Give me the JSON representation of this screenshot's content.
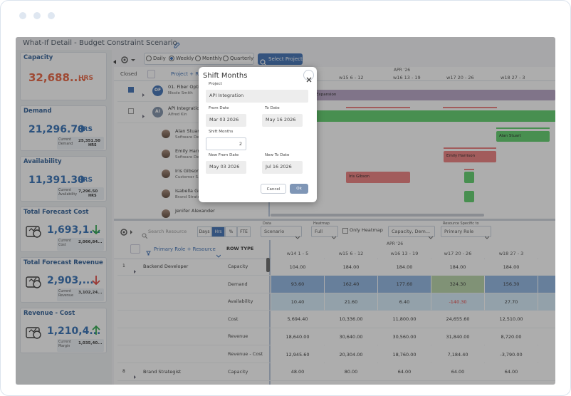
{
  "header": {
    "title": "What-If Detail - Budget Constraint Scenario"
  },
  "kpis": [
    {
      "title": "Capacity",
      "value": "32,688....",
      "unit": "HRS"
    },
    {
      "title": "Demand",
      "value": "21,296.70",
      "unit": "HRS",
      "current_label": "Current Demand",
      "current_value": "25,351.50",
      "current_unit": "HRS"
    },
    {
      "title": "Availability",
      "value": "11,391.30",
      "unit": "HRS",
      "current_label": "Current Availability",
      "current_value": "7,296.50",
      "current_unit": "HRS"
    },
    {
      "title": "Total Forecast Cost",
      "value": "1,693,1...",
      "current_label": "Current Cost",
      "current_value": "2,066,84..."
    },
    {
      "title": "Total Forecast Revenue",
      "value": "2,903,...",
      "current_label": "Current Revenue",
      "current_value": "3,102,24..."
    },
    {
      "title": "Revenue - Cost",
      "value": "1,210,4...",
      "current_label": "Current Margin",
      "current_value": "1,035,40..."
    }
  ],
  "toolbar": {
    "views": [
      "Daily",
      "Weekly",
      "Monthly",
      "Quarterly"
    ],
    "select_project": "Select Project"
  },
  "gantt": {
    "closed": "Closed",
    "group": "Project + R...",
    "month": "APR '26",
    "weeks": [
      "w15 6 - 12",
      "w16 13 - 19",
      "w17 20 - 26",
      "w18 27 - 3"
    ],
    "projects": [
      {
        "badge": "OF",
        "name": "01. Fiber Optic...",
        "owner": "Nicole Smith"
      },
      {
        "badge": "AI",
        "name": "API Integration",
        "owner": "Alfred Kin"
      }
    ],
    "resources": [
      {
        "name": "Alan Stuart",
        "role": "Software De..."
      },
      {
        "name": "Emily Harriso...",
        "role": "Software De..."
      },
      {
        "name": "Iris Gibson",
        "role": "Customer S..."
      },
      {
        "name": "Isabella Gra...",
        "role": "Brand Strate..."
      },
      {
        "name": "Jenifer Alexander"
      }
    ],
    "bars": [
      {
        "label": "Expansion",
        "color": "#b7a3c6"
      },
      {
        "label": "Alan Stuart",
        "color": "#5ccf6a"
      },
      {
        "label": "Emily Harrison",
        "color": "#ee7c7c"
      },
      {
        "label": "Iris Gibson",
        "color": "#ee7c7c"
      }
    ]
  },
  "modal": {
    "title": "Shift Months",
    "project_label": "Project",
    "project": "API Integration",
    "from_label": "From Date",
    "from": "Mar 03 2026",
    "to_label": "To Date",
    "to": "May 16 2026",
    "shift_label": "Shift Months",
    "shift": "2",
    "new_from_label": "New From Date",
    "new_from": "May 03 2026",
    "new_to_label": "New To Date",
    "new_to": "Jul 16 2026",
    "cancel": "Cancel",
    "ok": "Ok"
  },
  "resource_toolbar": {
    "search": "Search Resource",
    "units": [
      "Days",
      "Hrs",
      "%",
      "FTE"
    ],
    "data_label": "Data",
    "data": "Scenario",
    "heatmap_label": "Heatmap",
    "heatmap": "Full",
    "only_heatmap": "Only Heatmap",
    "rows": "Capacity, Dem...",
    "specific_label": "Resource Specific to",
    "specific": "Primary Role"
  },
  "table": {
    "group": "Primary Role + Resource",
    "row_type": "ROW TYPE",
    "month": "APR '26",
    "weeks": [
      "w14 1 - 5",
      "w15 6 - 12",
      "w16 13 - 19",
      "w17 20 - 26",
      "w18 27 - 3"
    ],
    "groups": [
      {
        "index": "1",
        "name": "Backend Developer",
        "rows": [
          {
            "type": "Capacity",
            "values": [
              "104.00",
              "184.00",
              "184.00",
              "184.00",
              "184.00"
            ]
          },
          {
            "type": "Demand",
            "values": [
              "93.60",
              "162.40",
              "177.60",
              "324.30",
              "156.30"
            ],
            "fills": [
              "#8fb5e3",
              "#8fb5e3",
              "#8fb5e3",
              "#b6d3a6",
              "#8fb5e3"
            ]
          },
          {
            "type": "Availability",
            "values": [
              "10.40",
              "21.60",
              "6.40",
              "-140.30",
              "27.70"
            ],
            "fills": [
              "#d6ecfa",
              "#d6ecfa",
              "#d6ecfa",
              "#d6ecfa",
              "#d6ecfa"
            ],
            "negative_color": "#e53935"
          },
          {
            "type": "Cost",
            "values": [
              "5,694.40",
              "10,336.00",
              "11,800.00",
              "24,655.60",
              "12,510.00"
            ]
          },
          {
            "type": "Revenue",
            "values": [
              "18,640.00",
              "30,640.00",
              "30,560.00",
              "31,840.00",
              "8,720.00"
            ]
          },
          {
            "type": "Revenue - Cost",
            "values": [
              "12,945.60",
              "20,304.00",
              "18,760.00",
              "7,184.40",
              "-3,790.00"
            ]
          }
        ]
      },
      {
        "index": "8",
        "name": "Brand Strategist",
        "rows": [
          {
            "type": "Capacity",
            "values": [
              "48.00",
              "80.00",
              "64.00",
              "64.00",
              "64.00"
            ]
          }
        ]
      }
    ]
  }
}
